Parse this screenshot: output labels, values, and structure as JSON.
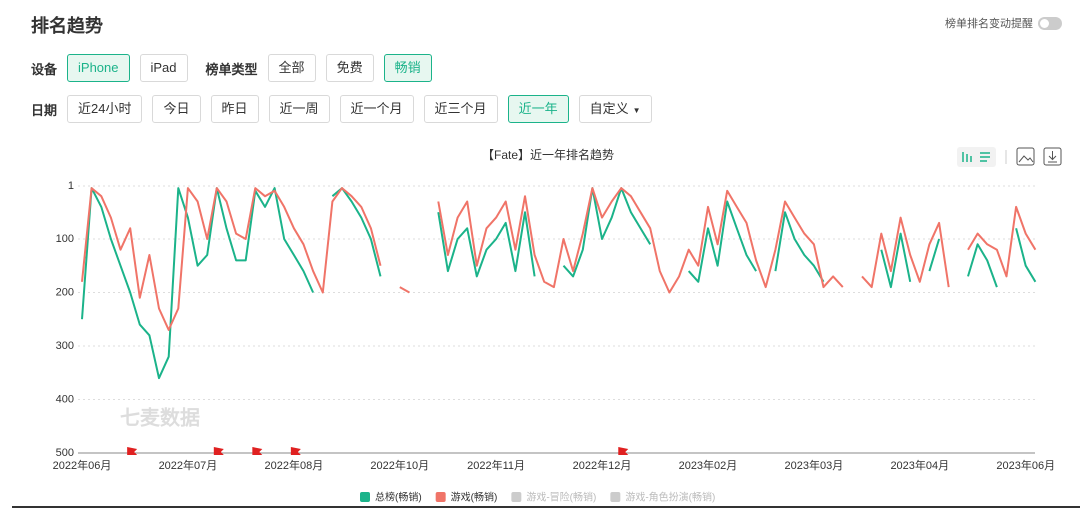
{
  "header": {
    "title": "排名趋势",
    "toggle_label": "榜单排名变动提醒"
  },
  "filters": [
    {
      "label": "设备",
      "options": [
        "iPhone",
        "iPad"
      ],
      "selected": 0
    },
    {
      "label": "榜单类型",
      "options": [
        "全部",
        "免费",
        "畅销"
      ],
      "selected": 2
    },
    {
      "label": "日期",
      "options": [
        "近24小时",
        "今日",
        "昨日",
        "近一周",
        "近一个月",
        "近三个月",
        "近一年",
        "自定义"
      ],
      "selected": 6
    }
  ],
  "watermark": "七麦数据",
  "chart_data": {
    "type": "line",
    "title": "【Fate】近一年排名趋势",
    "categories": [
      "2022年06月",
      null,
      null,
      null,
      null,
      null,
      null,
      null,
      null,
      null,
      null,
      "2022年07月",
      null,
      null,
      null,
      null,
      null,
      null,
      null,
      null,
      null,
      null,
      "2022年08月",
      null,
      null,
      null,
      null,
      null,
      null,
      null,
      null,
      null,
      null,
      "2022年10月",
      null,
      null,
      null,
      null,
      null,
      null,
      null,
      null,
      null,
      "2022年11月",
      null,
      null,
      null,
      null,
      null,
      null,
      null,
      null,
      null,
      null,
      "2022年12月",
      null,
      null,
      null,
      null,
      null,
      null,
      null,
      null,
      null,
      null,
      "2023年02月",
      null,
      null,
      null,
      null,
      null,
      null,
      null,
      null,
      null,
      null,
      "2023年03月",
      null,
      null,
      null,
      null,
      null,
      null,
      null,
      null,
      null,
      null,
      "2023年04月",
      null,
      null,
      null,
      null,
      null,
      null,
      null,
      null,
      null,
      null,
      "2023年06月",
      null
    ],
    "series": [
      {
        "name": "总榜(畅销)",
        "color": "#1bb38a",
        "values": [
          250,
          5,
          40,
          100,
          150,
          200,
          260,
          280,
          360,
          320,
          5,
          60,
          150,
          130,
          5,
          80,
          140,
          140,
          10,
          40,
          5,
          100,
          130,
          160,
          200,
          null,
          20,
          5,
          30,
          60,
          100,
          170,
          null,
          null,
          null,
          null,
          null,
          50,
          160,
          100,
          80,
          170,
          120,
          100,
          70,
          160,
          50,
          170,
          null,
          null,
          150,
          170,
          120,
          5,
          100,
          60,
          5,
          50,
          80,
          110,
          null,
          null,
          null,
          160,
          180,
          80,
          150,
          30,
          80,
          130,
          160,
          null,
          160,
          50,
          100,
          130,
          150,
          180,
          null,
          null,
          null,
          null,
          null,
          120,
          190,
          90,
          180,
          null,
          160,
          100,
          null,
          null,
          170,
          110,
          140,
          190,
          null,
          80,
          150,
          180
        ]
      },
      {
        "name": "游戏(畅销)",
        "color": "#f07468",
        "values": [
          180,
          5,
          20,
          60,
          120,
          80,
          210,
          130,
          230,
          270,
          230,
          5,
          30,
          100,
          5,
          30,
          90,
          100,
          5,
          20,
          10,
          40,
          80,
          110,
          160,
          200,
          30,
          5,
          20,
          40,
          80,
          150,
          null,
          190,
          200,
          null,
          null,
          30,
          130,
          60,
          30,
          150,
          80,
          60,
          30,
          120,
          20,
          130,
          180,
          190,
          100,
          160,
          90,
          5,
          60,
          30,
          5,
          20,
          50,
          80,
          160,
          200,
          170,
          120,
          150,
          40,
          110,
          10,
          40,
          70,
          140,
          190,
          120,
          30,
          60,
          90,
          110,
          190,
          170,
          190,
          null,
          170,
          190,
          90,
          160,
          60,
          130,
          180,
          110,
          70,
          190,
          null,
          120,
          90,
          110,
          120,
          170,
          40,
          90,
          120
        ]
      }
    ],
    "inactive_legend": [
      "游戏-冒险(畅销)",
      "游戏-角色扮演(畅销)"
    ],
    "event_indices": [
      5,
      14,
      18,
      22,
      56
    ],
    "ylim": [
      1,
      500
    ],
    "yticks": [
      1,
      100,
      200,
      300,
      400,
      500
    ],
    "y_reversed": true,
    "grid": true
  }
}
